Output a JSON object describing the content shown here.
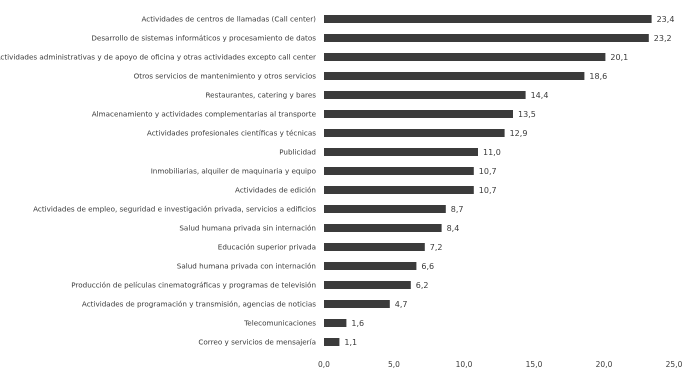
{
  "chart_data": {
    "type": "bar",
    "orientation": "horizontal",
    "categories": [
      "Actividades de centros de llamadas (Call center)",
      "Desarrollo de sistemas informáticos y procesamiento de datos",
      "Actividades administrativas y de apoyo de oficina y otras actividades excepto call center",
      "Otros servicios de mantenimiento y otros servicios",
      "Restaurantes, catering y bares",
      "Almacenamiento y actividades complementarias al transporte",
      "Actividades profesionales científicas y técnicas",
      "Publicidad",
      "Inmobiliarias, alquiler de maquinaria y equipo",
      "Actividades de edición",
      "Actividades de empleo, seguridad e investigación privada, servicios a edificios",
      "Salud humana privada sin internación",
      "Educación superior privada",
      "Salud humana privada con internación",
      "Producción de películas cinematográficas y programas de televisión",
      "Actividades de programación y transmisión, agencias de noticias",
      "Telecomunicaciones",
      "Correo y servicios de mensajería"
    ],
    "values": [
      23.4,
      23.2,
      20.1,
      18.6,
      14.4,
      13.5,
      12.9,
      11.0,
      10.7,
      10.7,
      8.7,
      8.4,
      7.2,
      6.6,
      6.2,
      4.7,
      1.6,
      1.1
    ],
    "value_labels": [
      "23,4",
      "23,2",
      "20,1",
      "18,6",
      "14,4",
      "13,5",
      "12,9",
      "11,0",
      "10,7",
      "10,7",
      "8,7",
      "8,4",
      "7,2",
      "6,6",
      "6,2",
      "4,7",
      "1,6",
      "1,1"
    ],
    "xlim": [
      0,
      25
    ],
    "xticks": [
      "0,0",
      "5,0",
      "10,0",
      "15,0",
      "20,0",
      "25,0"
    ],
    "bar_color": "#3b3b3b",
    "grid": false,
    "title": "",
    "xlabel": "",
    "ylabel": ""
  }
}
